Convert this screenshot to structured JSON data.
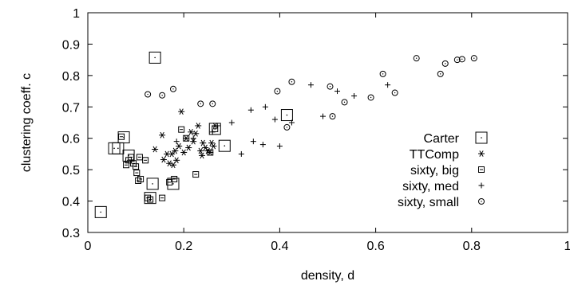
{
  "chart_data": {
    "type": "scatter",
    "xlabel": "density, d",
    "ylabel": "clustering coeff. c",
    "xlim": [
      0,
      1
    ],
    "ylim": [
      0.3,
      1
    ],
    "x_ticks": [
      0,
      0.2,
      0.4,
      0.6,
      0.8,
      1
    ],
    "y_ticks": [
      0.3,
      0.4,
      0.5,
      0.6,
      0.7,
      0.8,
      0.9,
      1
    ],
    "x_tick_labels": [
      "0",
      "0.2",
      "0.4",
      "0.6",
      "0.8",
      "1"
    ],
    "y_tick_labels": [
      "0.3",
      "0.4",
      "0.5",
      "0.6",
      "0.7",
      "0.8",
      "0.9",
      "1"
    ],
    "grid": false,
    "legend_position": "right",
    "series": [
      {
        "name": "Carter",
        "marker": "big-square",
        "points": [
          [
            0.027,
            0.365
          ],
          [
            0.055,
            0.568
          ],
          [
            0.063,
            0.568
          ],
          [
            0.075,
            0.603
          ],
          [
            0.085,
            0.545
          ],
          [
            0.14,
            0.857
          ],
          [
            0.13,
            0.41
          ],
          [
            0.135,
            0.455
          ],
          [
            0.178,
            0.455
          ],
          [
            0.265,
            0.63
          ],
          [
            0.285,
            0.576
          ],
          [
            0.415,
            0.674
          ]
        ]
      },
      {
        "name": "TTComp",
        "marker": "asterisk",
        "points": [
          [
            0.14,
            0.565
          ],
          [
            0.155,
            0.61
          ],
          [
            0.158,
            0.532
          ],
          [
            0.165,
            0.55
          ],
          [
            0.17,
            0.52
          ],
          [
            0.175,
            0.55
          ],
          [
            0.178,
            0.515
          ],
          [
            0.182,
            0.56
          ],
          [
            0.185,
            0.53
          ],
          [
            0.19,
            0.575
          ],
          [
            0.195,
            0.685
          ],
          [
            0.2,
            0.555
          ],
          [
            0.205,
            0.6
          ],
          [
            0.21,
            0.57
          ],
          [
            0.215,
            0.62
          ],
          [
            0.22,
            0.59
          ],
          [
            0.225,
            0.615
          ],
          [
            0.23,
            0.64
          ],
          [
            0.235,
            0.56
          ],
          [
            0.238,
            0.545
          ],
          [
            0.24,
            0.585
          ],
          [
            0.245,
            0.57
          ],
          [
            0.25,
            0.56
          ],
          [
            0.255,
            0.555
          ],
          [
            0.258,
            0.585
          ],
          [
            0.262,
            0.575
          ],
          [
            0.265,
            0.64
          ]
        ]
      },
      {
        "name": "sixty, big",
        "marker": "small-square",
        "points": [
          [
            0.07,
            0.605
          ],
          [
            0.08,
            0.515
          ],
          [
            0.085,
            0.53
          ],
          [
            0.09,
            0.54
          ],
          [
            0.095,
            0.52
          ],
          [
            0.1,
            0.51
          ],
          [
            0.102,
            0.49
          ],
          [
            0.105,
            0.465
          ],
          [
            0.108,
            0.54
          ],
          [
            0.11,
            0.47
          ],
          [
            0.12,
            0.53
          ],
          [
            0.125,
            0.41
          ],
          [
            0.13,
            0.405
          ],
          [
            0.155,
            0.41
          ],
          [
            0.17,
            0.46
          ],
          [
            0.18,
            0.47
          ],
          [
            0.195,
            0.628
          ],
          [
            0.205,
            0.6
          ],
          [
            0.225,
            0.485
          ],
          [
            0.255,
            0.555
          ],
          [
            0.265,
            0.63
          ]
        ]
      },
      {
        "name": "sixty, med",
        "marker": "plus",
        "points": [
          [
            0.185,
            0.59
          ],
          [
            0.22,
            0.6
          ],
          [
            0.27,
            0.64
          ],
          [
            0.26,
            0.62
          ],
          [
            0.3,
            0.65
          ],
          [
            0.32,
            0.55
          ],
          [
            0.34,
            0.69
          ],
          [
            0.345,
            0.59
          ],
          [
            0.365,
            0.58
          ],
          [
            0.37,
            0.7
          ],
          [
            0.39,
            0.66
          ],
          [
            0.4,
            0.575
          ],
          [
            0.425,
            0.65
          ],
          [
            0.465,
            0.77
          ],
          [
            0.49,
            0.67
          ],
          [
            0.52,
            0.75
          ],
          [
            0.555,
            0.735
          ],
          [
            0.625,
            0.77
          ]
        ]
      },
      {
        "name": "sixty, small",
        "marker": "circle",
        "points": [
          [
            0.125,
            0.74
          ],
          [
            0.155,
            0.737
          ],
          [
            0.178,
            0.757
          ],
          [
            0.235,
            0.71
          ],
          [
            0.26,
            0.71
          ],
          [
            0.395,
            0.75
          ],
          [
            0.415,
            0.635
          ],
          [
            0.425,
            0.78
          ],
          [
            0.505,
            0.765
          ],
          [
            0.51,
            0.67
          ],
          [
            0.535,
            0.715
          ],
          [
            0.59,
            0.73
          ],
          [
            0.615,
            0.805
          ],
          [
            0.64,
            0.745
          ],
          [
            0.685,
            0.855
          ],
          [
            0.735,
            0.805
          ],
          [
            0.745,
            0.838
          ],
          [
            0.77,
            0.85
          ],
          [
            0.78,
            0.852
          ],
          [
            0.805,
            0.855
          ]
        ]
      }
    ]
  }
}
